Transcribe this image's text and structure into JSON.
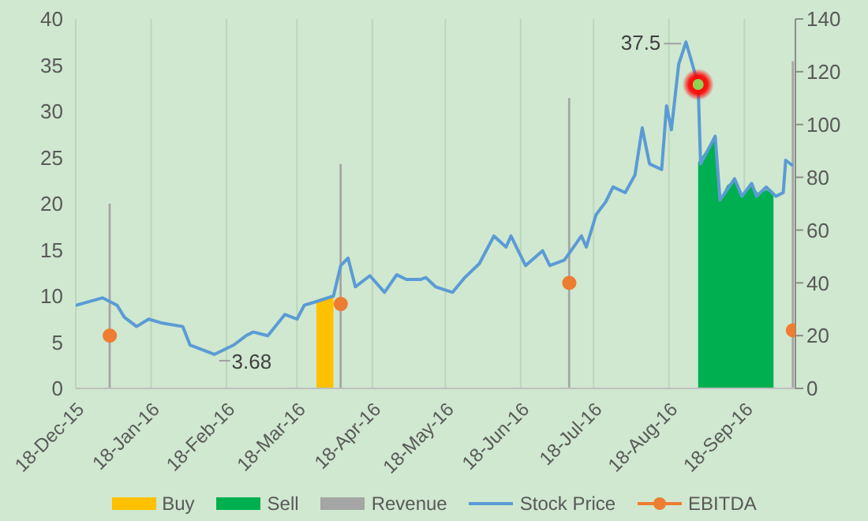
{
  "chart_data": {
    "type": "line",
    "series": [
      {
        "name": "Buy",
        "type": "area",
        "color": "#ffc000",
        "x": [
          "2016-03-26",
          "2016-04-02"
        ],
        "values": [
          9.4,
          10
        ]
      },
      {
        "name": "Sell",
        "type": "area",
        "color": "#00b050",
        "x": [
          "2016-08-30",
          "2016-09-03",
          "2016-09-06",
          "2016-09-08",
          "2016-09-11",
          "2016-09-14",
          "2016-09-17",
          "2016-09-21",
          "2016-09-24",
          "2016-09-27",
          "2016-09-30"
        ],
        "values": [
          24.5,
          26,
          27,
          20.5,
          22,
          22.5,
          20.8,
          22,
          21,
          21.5,
          21
        ]
      },
      {
        "name": "Revenue",
        "type": "bar",
        "axis": "y2",
        "color": "#a5a5a5",
        "x": [
          "2016-01-01",
          "2016-04-05",
          "2016-07-08",
          "2016-10-08"
        ],
        "values": [
          70,
          85,
          110,
          124
        ]
      },
      {
        "name": "Stock Price",
        "color": "#5b9bd5",
        "x": [
          "2015-12-18",
          "2015-12-29",
          "2016-01-04",
          "2016-01-07",
          "2016-01-12",
          "2016-01-17",
          "2016-01-22",
          "2016-01-31",
          "2016-02-03",
          "2016-02-13",
          "2016-02-21",
          "2016-02-26",
          "2016-02-29",
          "2016-03-06",
          "2016-03-13",
          "2016-03-18",
          "2016-03-21",
          "2016-03-26",
          "2016-04-02",
          "2016-04-05",
          "2016-04-08",
          "2016-04-11",
          "2016-04-17",
          "2016-04-23",
          "2016-04-28",
          "2016-05-02",
          "2016-05-08",
          "2016-05-10",
          "2016-05-14",
          "2016-05-21",
          "2016-05-26",
          "2016-06-01",
          "2016-06-07",
          "2016-06-12",
          "2016-06-14",
          "2016-06-20",
          "2016-06-27",
          "2016-06-30",
          "2016-07-06",
          "2016-07-13",
          "2016-07-15",
          "2016-07-19",
          "2016-07-23",
          "2016-07-26",
          "2016-07-31",
          "2016-08-04",
          "2016-08-07",
          "2016-08-10",
          "2016-08-15",
          "2016-08-17",
          "2016-08-19",
          "2016-08-22",
          "2016-08-25",
          "2016-08-30",
          "2016-08-31",
          "2016-09-06",
          "2016-09-08",
          "2016-09-14",
          "2016-09-17",
          "2016-09-21",
          "2016-09-23",
          "2016-09-27",
          "2016-10-01",
          "2016-10-04",
          "2016-10-05",
          "2016-10-08"
        ],
        "values": [
          9.0,
          9.8,
          9.0,
          7.7,
          6.7,
          7.5,
          7.1,
          6.7,
          4.7,
          3.68,
          4.7,
          5.7,
          6.1,
          5.7,
          8.0,
          7.5,
          9.0,
          9.4,
          10.0,
          13.3,
          14.1,
          11.0,
          12.2,
          10.4,
          12.3,
          11.8,
          11.8,
          12.0,
          11.0,
          10.4,
          12.0,
          13.5,
          16.5,
          15.3,
          16.5,
          13.3,
          14.9,
          13.3,
          13.9,
          16.5,
          15.3,
          18.8,
          20.2,
          21.8,
          21.2,
          23.1,
          28.2,
          24.3,
          23.7,
          30.6,
          28.0,
          35.1,
          37.5,
          32.9,
          24.3,
          27.3,
          20.4,
          22.7,
          20.8,
          22.2,
          20.8,
          21.8,
          20.8,
          21.2,
          24.7,
          24.1
        ]
      },
      {
        "name": "EBITDA",
        "type": "scatter",
        "axis": "y2",
        "color": "#ed7d31",
        "marker": "circle",
        "x": [
          "2016-01-01",
          "2016-04-05",
          "2016-07-08",
          "2016-10-08"
        ],
        "values": [
          20,
          32,
          40,
          22
        ]
      }
    ],
    "xlim": [
      "2015-12-18",
      "2016-10-09"
    ],
    "xticks": [
      {
        "value": "2015-12-18",
        "label": "18-Dec-15"
      },
      {
        "value": "2016-01-18",
        "label": "18-Jan-16"
      },
      {
        "value": "2016-02-18",
        "label": "18-Feb-16"
      },
      {
        "value": "2016-03-18",
        "label": "18-Mar-16"
      },
      {
        "value": "2016-04-18",
        "label": "18-Apr-16"
      },
      {
        "value": "2016-05-18",
        "label": "18-May-16"
      },
      {
        "value": "2016-06-18",
        "label": "18-Jun-16"
      },
      {
        "value": "2016-07-18",
        "label": "18-Jul-16"
      },
      {
        "value": "2016-08-18",
        "label": "18-Aug-16"
      },
      {
        "value": "2016-09-18",
        "label": "18-Sep-16"
      }
    ],
    "ylim": [
      0,
      40
    ],
    "yticks": [
      0,
      5,
      10,
      15,
      20,
      25,
      30,
      35,
      40
    ],
    "y2lim": [
      0,
      140
    ],
    "y2ticks": [
      0,
      20,
      40,
      60,
      80,
      100,
      120,
      140
    ],
    "annotations": [
      {
        "text": "37.5",
        "x": "2016-08-25",
        "y": 37.5
      },
      {
        "text": "3.68",
        "x": "2016-02-13",
        "y": 3.68
      }
    ],
    "grid": "x",
    "legend": "bottom",
    "marker": "none",
    "line_style": "solid"
  }
}
